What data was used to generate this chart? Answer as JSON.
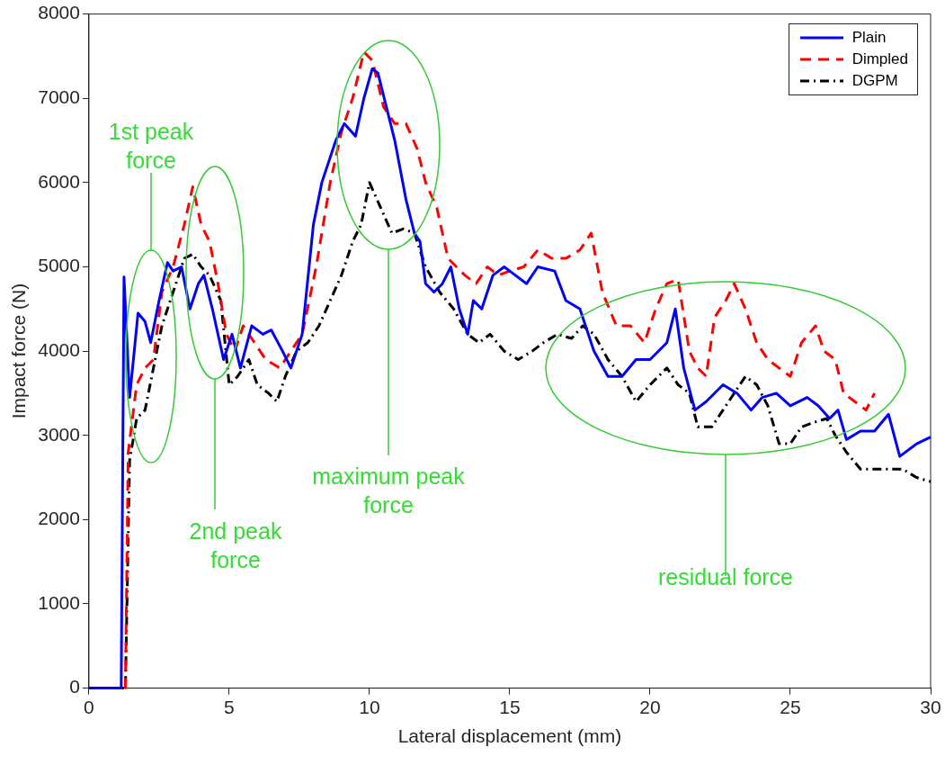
{
  "chart_data": {
    "type": "line",
    "xlabel": "Lateral displacement (mm)",
    "ylabel": "Impact force (N)",
    "xlim": [
      0,
      30
    ],
    "xticks": [
      0,
      5,
      10,
      15,
      20,
      25,
      30
    ],
    "ylim": [
      0,
      8000
    ],
    "yticks": [
      0,
      1000,
      2000,
      3000,
      4000,
      5000,
      6000,
      7000,
      8000
    ],
    "grid": false,
    "legend": "top right",
    "marker": "none",
    "series": [
      {
        "name": "Plain",
        "color": "#0000ff",
        "line_style": "solid",
        "x": [
          0,
          1.0,
          1.15,
          1.25,
          1.45,
          1.75,
          2.0,
          2.2,
          2.5,
          2.8,
          3.0,
          3.3,
          3.6,
          3.9,
          4.1,
          4.4,
          4.8,
          5.1,
          5.4,
          5.8,
          6.2,
          6.5,
          6.9,
          7.2,
          7.6,
          8.0,
          8.3,
          8.8,
          9.1,
          9.5,
          9.8,
          10.1,
          10.3,
          10.6,
          10.9,
          11.3,
          11.6,
          11.8,
          12.0,
          12.3,
          12.6,
          12.9,
          13.2,
          13.5,
          13.7,
          14.0,
          14.4,
          14.8,
          15.2,
          15.6,
          16.0,
          16.6,
          17.0,
          17.5,
          18.0,
          18.5,
          19.0,
          19.5,
          20.0,
          20.6,
          20.9,
          21.2,
          21.6,
          22.0,
          22.6,
          23.1,
          23.6,
          24.0,
          24.5,
          25.0,
          25.6,
          26.0,
          26.4,
          26.7,
          27.0,
          27.5,
          28.0,
          28.5,
          28.9,
          29.5,
          30.0
        ],
        "values": [
          0,
          0,
          0,
          4880,
          3450,
          4450,
          4350,
          4100,
          4600,
          5050,
          4950,
          5000,
          4500,
          4800,
          4900,
          4500,
          3900,
          4200,
          3800,
          4300,
          4200,
          4250,
          4000,
          3800,
          4200,
          5500,
          6000,
          6500,
          6700,
          6550,
          7000,
          7350,
          7300,
          6900,
          6500,
          5800,
          5400,
          5300,
          4800,
          4700,
          4800,
          5000,
          4500,
          4200,
          4600,
          4500,
          4900,
          5000,
          4900,
          4800,
          5000,
          4950,
          4600,
          4500,
          4000,
          3700,
          3700,
          3900,
          3900,
          4100,
          4500,
          3800,
          3300,
          3400,
          3600,
          3500,
          3300,
          3450,
          3500,
          3350,
          3450,
          3350,
          3200,
          3300,
          2950,
          3050,
          3050,
          3250,
          2750,
          2900,
          2980
        ]
      },
      {
        "name": "Dimpled",
        "color": "#ff0000",
        "line_style": "dashed",
        "x": [
          0,
          1.3,
          1.4,
          1.7,
          2.0,
          2.3,
          2.6,
          3.0,
          3.4,
          3.7,
          4.0,
          4.3,
          4.6,
          4.9,
          5.2,
          5.5,
          5.9,
          6.3,
          6.8,
          7.2,
          7.6,
          8.1,
          8.6,
          9.0,
          9.4,
          9.8,
          10.1,
          10.5,
          10.9,
          11.3,
          11.7,
          12.0,
          12.4,
          12.8,
          13.1,
          13.4,
          13.8,
          14.2,
          14.6,
          15.0,
          15.5,
          16.0,
          16.5,
          17.0,
          17.5,
          17.9,
          18.3,
          18.8,
          19.3,
          19.8,
          20.2,
          20.6,
          21.0,
          21.4,
          21.7,
          22.0,
          22.3,
          22.7,
          23.0,
          23.4,
          23.8,
          24.2,
          24.6,
          25.0,
          25.4,
          25.9,
          26.2,
          26.6,
          26.9,
          27.3,
          27.7,
          28.0
        ],
        "values": [
          0,
          0,
          2800,
          3600,
          3800,
          3900,
          4700,
          5000,
          5500,
          5950,
          5500,
          5300,
          4800,
          4200,
          4000,
          4300,
          4100,
          3900,
          3800,
          4000,
          4200,
          5000,
          6000,
          6600,
          7000,
          7550,
          7450,
          6900,
          6700,
          6700,
          6400,
          6000,
          5700,
          5100,
          5000,
          4900,
          4800,
          5000,
          4900,
          4950,
          5000,
          5200,
          5100,
          5100,
          5200,
          5400,
          4700,
          4300,
          4300,
          4100,
          4500,
          4800,
          4850,
          4000,
          3800,
          3700,
          4400,
          4600,
          4800,
          4500,
          4100,
          3900,
          3800,
          3700,
          4100,
          4300,
          4000,
          3900,
          3500,
          3400,
          3300,
          3500
        ]
      },
      {
        "name": "DGPM",
        "color": "#000000",
        "line_style": "dashdot",
        "x": [
          0,
          1.3,
          1.45,
          1.7,
          2.0,
          2.3,
          2.6,
          3.0,
          3.4,
          3.7,
          4.0,
          4.3,
          4.7,
          5.0,
          5.3,
          5.7,
          6.0,
          6.4,
          6.7,
          7.0,
          7.4,
          7.8,
          8.2,
          8.6,
          9.0,
          9.4,
          9.7,
          10.0,
          10.4,
          10.8,
          11.2,
          11.6,
          12.0,
          12.5,
          13.0,
          13.5,
          13.9,
          14.3,
          14.8,
          15.3,
          15.8,
          16.2,
          16.7,
          17.2,
          17.6,
          18.0,
          18.5,
          19.0,
          19.5,
          20.0,
          20.6,
          21.0,
          21.4,
          21.7,
          22.2,
          22.6,
          23.0,
          23.4,
          23.8,
          24.2,
          24.6,
          25.0,
          25.4,
          25.8,
          26.3,
          26.6,
          27.0,
          27.5,
          28.0,
          28.5,
          29.0,
          29.5,
          30.0
        ],
        "values": [
          0,
          0,
          2700,
          3200,
          3300,
          3800,
          4300,
          4700,
          5100,
          5150,
          5000,
          4900,
          4600,
          3600,
          3700,
          3900,
          3600,
          3500,
          3400,
          3700,
          4000,
          4100,
          4300,
          4600,
          4900,
          5300,
          5500,
          6000,
          5700,
          5400,
          5450,
          5400,
          5000,
          4700,
          4500,
          4200,
          4100,
          4200,
          4000,
          3900,
          4000,
          4100,
          4200,
          4150,
          4300,
          4200,
          3900,
          3700,
          3400,
          3600,
          3800,
          3600,
          3500,
          3100,
          3100,
          3300,
          3500,
          3700,
          3600,
          3350,
          2900,
          2900,
          3100,
          3150,
          3200,
          3000,
          2800,
          2600,
          2600,
          2600,
          2600,
          2500,
          2450
        ]
      }
    ],
    "annotations": [
      "1st peak force",
      "2nd peak force",
      "maximum peak force",
      "residual force"
    ]
  }
}
